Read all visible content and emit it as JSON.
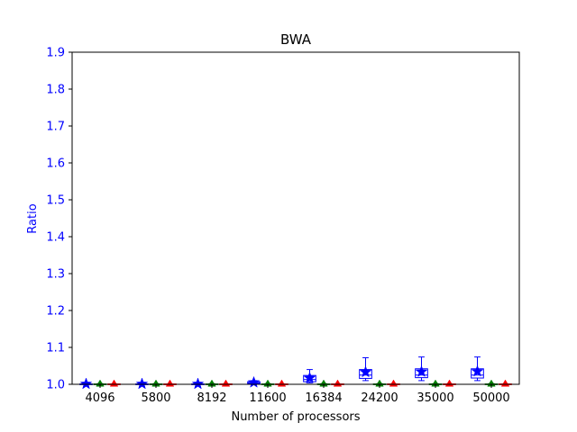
{
  "chart_data": {
    "type": "box",
    "title": "BWA",
    "xlabel": "Number of processors",
    "ylabel": "Ratio",
    "categories": [
      "4096",
      "5800",
      "8192",
      "11600",
      "16384",
      "24200",
      "35000",
      "50000"
    ],
    "ylim": [
      1.0,
      1.9
    ],
    "yticks": [
      1.0,
      1.1,
      1.2,
      1.3,
      1.4,
      1.5,
      1.6,
      1.7,
      1.8,
      1.9
    ],
    "grid": false,
    "legend": "none",
    "series": [
      {
        "color": "#0000ff",
        "marker": "star",
        "boxes": [
          {
            "min": 1.0,
            "q1": 1.0,
            "median": 1.0,
            "q3": 1.001,
            "max": 1.002,
            "mean": 1.001
          },
          {
            "min": 1.0,
            "q1": 1.0,
            "median": 1.0,
            "q3": 1.001,
            "max": 1.002,
            "mean": 1.001
          },
          {
            "min": 1.0,
            "q1": 1.0,
            "median": 1.0,
            "q3": 1.001,
            "max": 1.002,
            "mean": 1.001
          },
          {
            "min": 1.0,
            "q1": 1.002,
            "median": 1.004,
            "q3": 1.007,
            "max": 1.01,
            "mean": 1.005
          },
          {
            "min": 1.004,
            "q1": 1.007,
            "median": 1.013,
            "q3": 1.024,
            "max": 1.04,
            "mean": 1.017
          },
          {
            "min": 1.01,
            "q1": 1.016,
            "median": 1.025,
            "q3": 1.04,
            "max": 1.072,
            "mean": 1.033
          },
          {
            "min": 1.01,
            "q1": 1.018,
            "median": 1.025,
            "q3": 1.042,
            "max": 1.074,
            "mean": 1.034
          },
          {
            "min": 1.01,
            "q1": 1.017,
            "median": 1.025,
            "q3": 1.042,
            "max": 1.074,
            "mean": 1.035
          }
        ]
      },
      {
        "color": "#008000",
        "marker": "triangle",
        "boxes": [
          {
            "min": 1.0,
            "q1": 1.0,
            "median": 1.0,
            "q3": 1.001,
            "max": 1.002,
            "mean": 1.001
          },
          {
            "min": 1.0,
            "q1": 1.0,
            "median": 1.0,
            "q3": 1.001,
            "max": 1.002,
            "mean": 1.001
          },
          {
            "min": 1.0,
            "q1": 1.0,
            "median": 1.0,
            "q3": 1.001,
            "max": 1.002,
            "mean": 1.001
          },
          {
            "min": 1.0,
            "q1": 1.0,
            "median": 1.0,
            "q3": 1.001,
            "max": 1.002,
            "mean": 1.001
          },
          {
            "min": 1.0,
            "q1": 1.0,
            "median": 1.0,
            "q3": 1.001,
            "max": 1.002,
            "mean": 1.001
          },
          {
            "min": 1.0,
            "q1": 1.0,
            "median": 1.0,
            "q3": 1.001,
            "max": 1.002,
            "mean": 1.001
          },
          {
            "min": 1.0,
            "q1": 1.0,
            "median": 1.0,
            "q3": 1.001,
            "max": 1.002,
            "mean": 1.001
          },
          {
            "min": 1.0,
            "q1": 1.0,
            "median": 1.0,
            "q3": 1.001,
            "max": 1.002,
            "mean": 1.001
          }
        ]
      },
      {
        "color": "#ff0000",
        "marker": "triangle",
        "boxes": [
          {
            "min": 1.0,
            "q1": 1.0,
            "median": 1.0,
            "q3": 1.001,
            "max": 1.001,
            "mean": 1.001
          },
          {
            "min": 1.0,
            "q1": 1.0,
            "median": 1.0,
            "q3": 1.001,
            "max": 1.001,
            "mean": 1.001
          },
          {
            "min": 1.0,
            "q1": 1.0,
            "median": 1.0,
            "q3": 1.001,
            "max": 1.001,
            "mean": 1.001
          },
          {
            "min": 1.0,
            "q1": 1.0,
            "median": 1.0,
            "q3": 1.001,
            "max": 1.001,
            "mean": 1.001
          },
          {
            "min": 1.0,
            "q1": 1.0,
            "median": 1.0,
            "q3": 1.001,
            "max": 1.001,
            "mean": 1.001
          },
          {
            "min": 1.0,
            "q1": 1.0,
            "median": 1.0,
            "q3": 1.001,
            "max": 1.001,
            "mean": 1.001
          },
          {
            "min": 1.0,
            "q1": 1.0,
            "median": 1.0,
            "q3": 1.001,
            "max": 1.001,
            "mean": 1.001
          },
          {
            "min": 1.0,
            "q1": 1.0,
            "median": 1.0,
            "q3": 1.001,
            "max": 1.001,
            "mean": 1.001
          }
        ]
      }
    ],
    "colors": {
      "axis_text": "#0000ff",
      "frame": "#000000"
    }
  }
}
